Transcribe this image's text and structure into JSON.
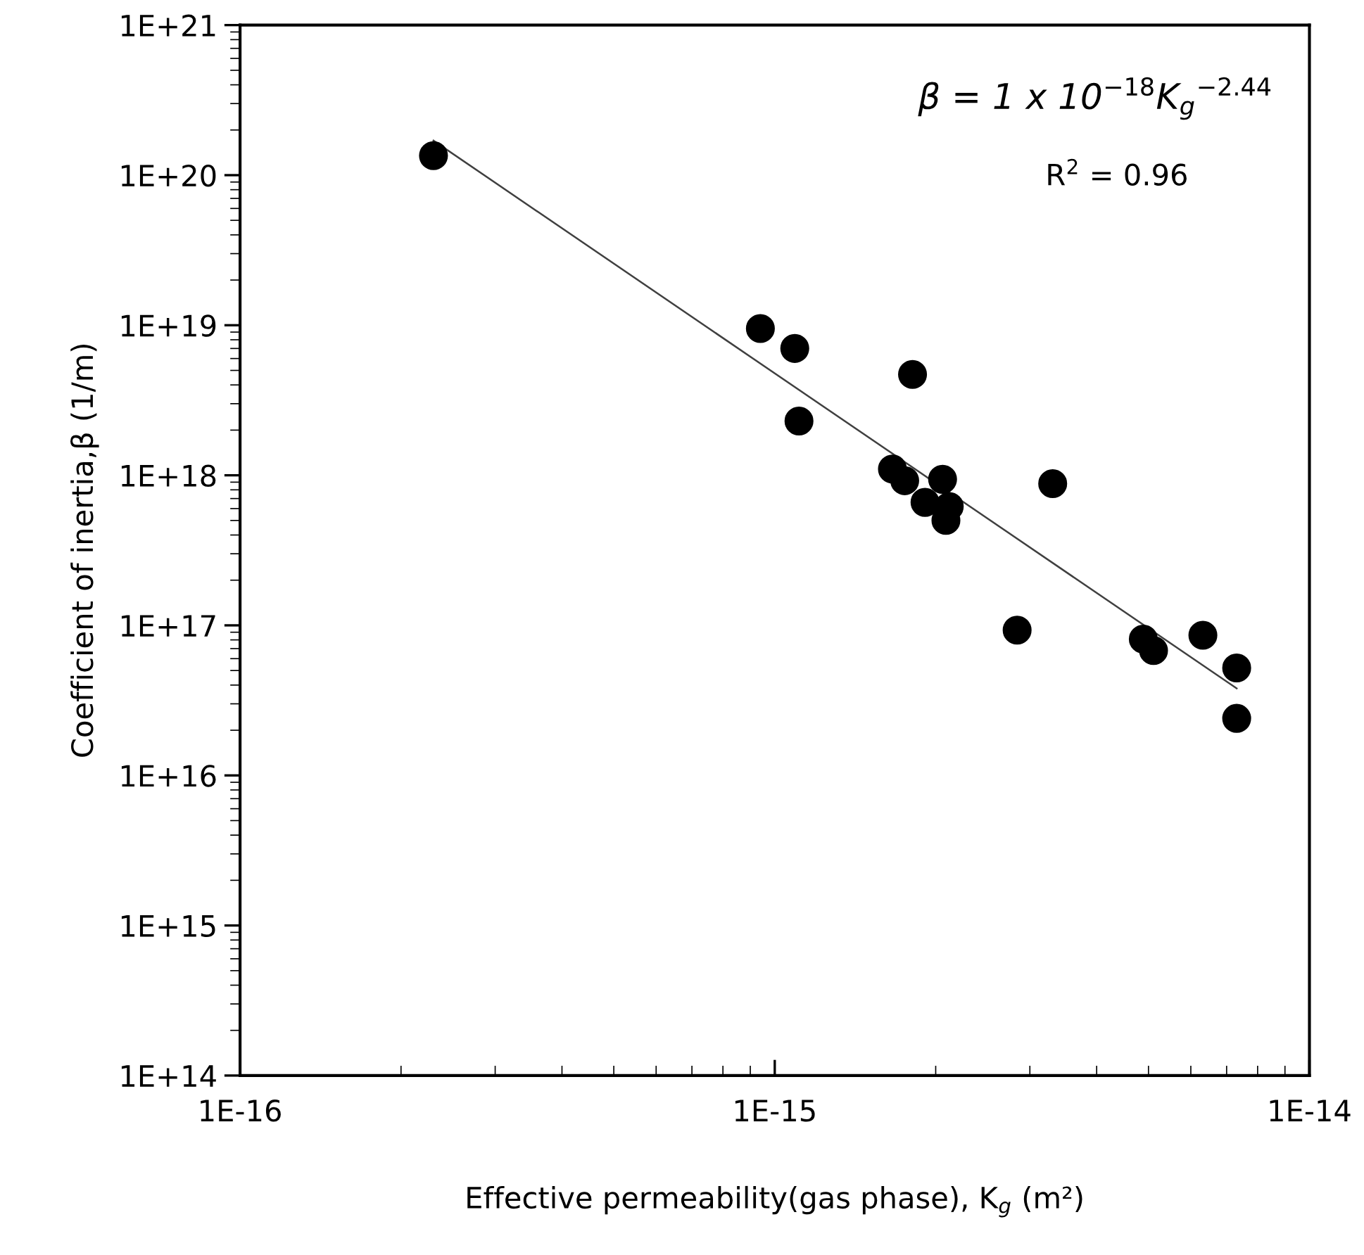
{
  "chart_data": {
    "type": "scatter",
    "log": "xy",
    "grid": false,
    "legend": false,
    "marker": "circle",
    "xlabel": "Effective permeability(gas phase), K$_{g}$ (m²)",
    "ylabel": "Coefficient of inertia,β (1/m)",
    "xlim": [
      1e-16,
      1e-14
    ],
    "ylim": [
      100000000000000.0,
      1e+21
    ],
    "xticks": [
      {
        "value": 1e-16,
        "label": "1E-16"
      },
      {
        "value": 1e-15,
        "label": "1E-15"
      },
      {
        "value": 1e-14,
        "label": "1E-14"
      }
    ],
    "yticks": [
      {
        "value": 100000000000000.0,
        "label": "1E+14"
      },
      {
        "value": 1000000000000000.0,
        "label": "1E+15"
      },
      {
        "value": 1e+16,
        "label": "1E+16"
      },
      {
        "value": 1e+17,
        "label": "1E+17"
      },
      {
        "value": 1e+18,
        "label": "1E+18"
      },
      {
        "value": 1e+19,
        "label": "1E+19"
      },
      {
        "value": 1e+20,
        "label": "1E+20"
      },
      {
        "value": 1e+21,
        "label": "1E+21"
      }
    ],
    "annotations": [
      "β = 1 x 10$^{−18}$K$_{g}$$^{−2.44}$",
      "R$^{2}$ = 0.96"
    ],
    "series": [
      {
        "color": "#000000",
        "x": [
          2.3e-16,
          9.4e-16,
          1.09e-15,
          1.81e-15,
          1.11e-15,
          1.66e-15,
          1.75e-15,
          2.06e-15,
          1.91e-15,
          2.12e-15,
          2.09e-15,
          3.31e-15,
          2.84e-15,
          4.89e-15,
          5.11e-15,
          6.32e-15,
          7.31e-15,
          7.31e-15
        ],
        "values": [
          1.35e+20,
          9.5e+18,
          7e+18,
          4.7e+18,
          2.3e+18,
          1.1e+18,
          9.2e+17,
          9.4e+17,
          6.6e+17,
          6.2e+17,
          5e+17,
          8.8e+17,
          9.3e+16,
          8.1e+16,
          6.8e+16,
          8.6e+16,
          5.2e+16,
          2.4e+16
        ]
      },
      {
        "type": "line",
        "color": "#404040",
        "marker": "none",
        "line_style": "solid",
        "x": [
          2.3e-16,
          7.31e-15
        ],
        "values": [
          1.7e+20,
          3.8e+16
        ]
      }
    ]
  }
}
